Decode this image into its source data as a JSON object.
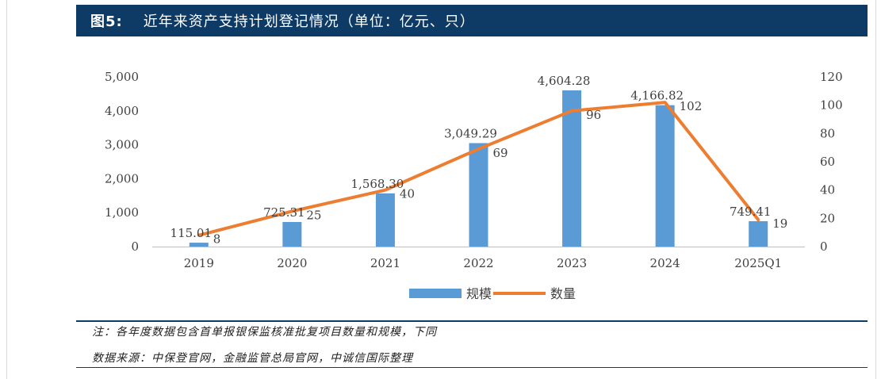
{
  "header": {
    "figure_number": "图5:",
    "title": "近年来资产支持计划登记情况（单位：亿元、只）"
  },
  "colors": {
    "header_bg": "#0e3a66",
    "bar": "#5b9bd5",
    "line": "#ed7d31"
  },
  "chart_data": {
    "type": "bar",
    "categories": [
      "2019",
      "2020",
      "2021",
      "2022",
      "2023",
      "2024",
      "2025Q1"
    ],
    "series": [
      {
        "name": "规模",
        "type": "bar",
        "axis": "left",
        "values": [
          115.01,
          725.31,
          1568.3,
          3049.29,
          4604.28,
          4166.82,
          749.41
        ],
        "labels": [
          "115.01",
          "725.31",
          "1,568.30",
          "3,049.29",
          "4,604.28",
          "4,166.82",
          "749.41"
        ]
      },
      {
        "name": "数量",
        "type": "line",
        "axis": "right",
        "values": [
          8,
          25,
          40,
          69,
          96,
          102,
          19
        ],
        "labels": [
          "8",
          "25",
          "40",
          "69",
          "96",
          "102",
          "19"
        ]
      }
    ],
    "y_left": {
      "range": [
        0,
        5000
      ],
      "ticks": [
        "0",
        "1,000",
        "2,000",
        "3,000",
        "4,000",
        "5,000"
      ]
    },
    "y_right": {
      "range": [
        0,
        120
      ],
      "ticks": [
        "0",
        "20",
        "40",
        "60",
        "80",
        "100",
        "120"
      ]
    },
    "legend_position": "bottom-center",
    "grid": false
  },
  "notes": {
    "note": "注：各年度数据包含首单报银保监核准批复项目数量和规模，下同",
    "source": "数据来源：中保登官网，金融监管总局官网，中诚信国际整理"
  }
}
